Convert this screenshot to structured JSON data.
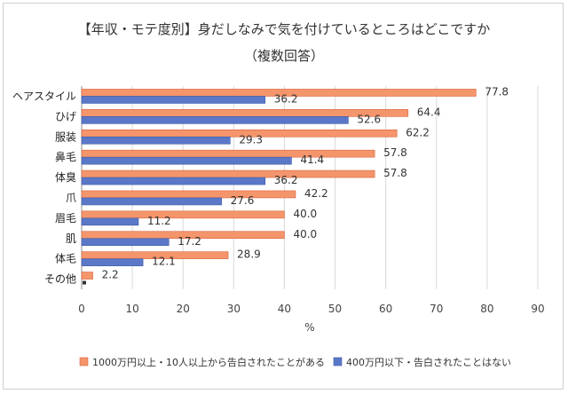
{
  "chart_data": {
    "type": "bar",
    "orientation": "horizontal",
    "title": "【年収・モテ度別】身だしなみで気を付けているところはどこですか",
    "subtitle": "（複数回答）",
    "xlabel": "%",
    "xlim": [
      0,
      90
    ],
    "xticks": [
      "0",
      "10",
      "20",
      "30",
      "40",
      "50",
      "60",
      "70",
      "80",
      "90"
    ],
    "grid": true,
    "legend_position": "bottom",
    "categories": [
      "ヘアスタイル",
      "ひげ",
      "服装",
      "鼻毛",
      "体臭",
      "爪",
      "眉毛",
      "肌",
      "体毛",
      "その他"
    ],
    "series": [
      {
        "name": "1000万円以上・10人以上から告白されたことがある",
        "color": "#f4956b",
        "values": [
          77.8,
          64.4,
          62.2,
          57.8,
          57.8,
          42.2,
          40.0,
          40.0,
          28.9,
          2.2
        ],
        "labels": [
          "77.8",
          "64.4",
          "62.2",
          "57.8",
          "57.8",
          "42.2",
          "40.0",
          "40.0",
          "28.9",
          "2.2"
        ]
      },
      {
        "name": "400万円以下・告白されたことはない",
        "color": "#5b78c8",
        "values": [
          36.2,
          52.6,
          29.3,
          41.4,
          36.2,
          27.6,
          11.2,
          17.2,
          12.1,
          0.0
        ],
        "labels": [
          "36.2",
          "52.6",
          "29.3",
          "41.4",
          "36.2",
          "27.6",
          "11.2",
          "17.2",
          "12.1",
          ""
        ]
      }
    ]
  }
}
